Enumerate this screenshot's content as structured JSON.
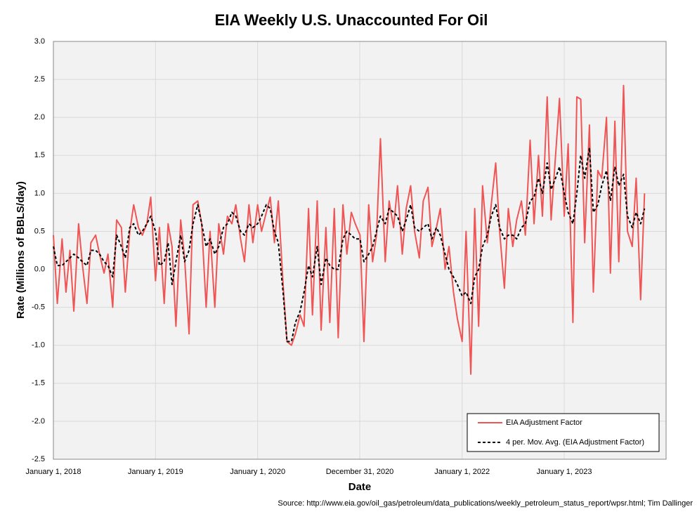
{
  "chart_data": {
    "type": "line",
    "title": "EIA Weekly U.S. Unaccounted For Oil",
    "x_label": "Date",
    "y_label": "Rate (Millions of BBLS/day)",
    "source": "Source: http://www.eia.gov/oil_gas/petroleum/data_publications/weekly_petroleum_status_report/wpsr.html; Tim Dallinger",
    "grid": true,
    "legend": "lower right",
    "xlim": [
      "2018-01-01",
      "2023-12-31"
    ],
    "xticks": [
      {
        "value": "2018-01-01",
        "label": "January 1, 2018"
      },
      {
        "value": "2019-01-01",
        "label": "January 1, 2019"
      },
      {
        "value": "2020-01-01",
        "label": "January 1, 2020"
      },
      {
        "value": "2020-12-31",
        "label": "December 31, 2020"
      },
      {
        "value": "2022-01-01",
        "label": "January 1, 2022"
      },
      {
        "value": "2023-01-01",
        "label": "January 1, 2023"
      }
    ],
    "ylim": [
      -2.5,
      3
    ],
    "yticks": [
      {
        "value": 3,
        "label": "3.0"
      },
      2.5,
      {
        "value": 2,
        "label": "2.0"
      },
      1.5,
      {
        "value": 1,
        "label": "1.0"
      },
      0.5,
      {
        "value": 0,
        "label": "0.0"
      },
      -0.5,
      {
        "value": -1,
        "label": "-1.0"
      },
      -1.5,
      {
        "value": -2,
        "label": "-2.0"
      },
      -2.5
    ],
    "x": [
      "2018-01-01",
      "2018-01-15",
      "2018-02-01",
      "2018-02-15",
      "2018-03-01",
      "2018-03-15",
      "2018-04-01",
      "2018-04-15",
      "2018-05-01",
      "2018-05-15",
      "2018-06-01",
      "2018-06-15",
      "2018-07-01",
      "2018-07-15",
      "2018-08-01",
      "2018-08-15",
      "2018-09-01",
      "2018-09-15",
      "2018-10-01",
      "2018-10-15",
      "2018-11-01",
      "2018-11-15",
      "2018-12-01",
      "2018-12-15",
      "2019-01-01",
      "2019-01-15",
      "2019-02-01",
      "2019-02-15",
      "2019-03-01",
      "2019-03-15",
      "2019-04-01",
      "2019-04-15",
      "2019-05-01",
      "2019-05-15",
      "2019-06-01",
      "2019-06-15",
      "2019-07-01",
      "2019-07-15",
      "2019-08-01",
      "2019-08-15",
      "2019-09-01",
      "2019-09-15",
      "2019-10-01",
      "2019-10-15",
      "2019-11-01",
      "2019-11-15",
      "2019-12-01",
      "2019-12-15",
      "2020-01-01",
      "2020-01-15",
      "2020-02-01",
      "2020-02-15",
      "2020-03-01",
      "2020-03-15",
      "2020-04-01",
      "2020-04-15",
      "2020-05-01",
      "2020-05-15",
      "2020-06-01",
      "2020-06-15",
      "2020-07-01",
      "2020-07-15",
      "2020-08-01",
      "2020-08-15",
      "2020-09-01",
      "2020-09-15",
      "2020-10-01",
      "2020-10-15",
      "2020-11-01",
      "2020-11-15",
      "2020-12-01",
      "2020-12-15",
      "2021-01-01",
      "2021-01-15",
      "2021-02-01",
      "2021-02-15",
      "2021-03-01",
      "2021-03-15",
      "2021-04-01",
      "2021-04-15",
      "2021-05-01",
      "2021-05-15",
      "2021-06-01",
      "2021-06-15",
      "2021-07-01",
      "2021-07-15",
      "2021-08-01",
      "2021-08-15",
      "2021-09-01",
      "2021-09-15",
      "2021-10-01",
      "2021-10-15",
      "2021-11-01",
      "2021-11-15",
      "2021-12-01",
      "2021-12-15",
      "2022-01-01",
      "2022-01-15",
      "2022-02-01",
      "2022-02-15",
      "2022-03-01",
      "2022-03-15",
      "2022-04-01",
      "2022-04-15",
      "2022-05-01",
      "2022-05-15",
      "2022-06-01",
      "2022-06-15",
      "2022-07-01",
      "2022-07-15",
      "2022-08-01",
      "2022-08-15",
      "2022-09-01",
      "2022-09-15",
      "2022-10-01",
      "2022-10-15",
      "2022-11-01",
      "2022-11-15",
      "2022-12-01",
      "2022-12-15",
      "2023-01-01",
      "2023-01-15",
      "2023-02-01",
      "2023-02-15",
      "2023-03-01",
      "2023-03-15",
      "2023-04-01",
      "2023-04-15",
      "2023-05-01",
      "2023-05-15",
      "2023-06-01",
      "2023-06-15",
      "2023-07-01",
      "2023-07-15",
      "2023-08-01",
      "2023-08-15",
      "2023-09-01",
      "2023-09-15",
      "2023-10-01",
      "2023-10-15"
    ],
    "series": [
      {
        "name": "EIA Adjustment Factor",
        "color": "#f05555",
        "dashed": false,
        "values": [
          0.45,
          -0.45,
          0.4,
          -0.3,
          0.25,
          -0.55,
          0.6,
          0.05,
          -0.45,
          0.35,
          0.45,
          0.2,
          -0.05,
          0.2,
          -0.5,
          0.65,
          0.55,
          -0.3,
          0.5,
          0.85,
          0.55,
          0.45,
          0.6,
          0.95,
          -0.15,
          0.55,
          -0.45,
          0.6,
          0.3,
          -0.75,
          0.65,
          0.15,
          -0.85,
          0.85,
          0.9,
          0.6,
          -0.5,
          0.5,
          -0.5,
          0.6,
          0.2,
          0.7,
          0.6,
          0.85,
          0.4,
          0.1,
          0.85,
          0.35,
          0.85,
          0.5,
          0.75,
          0.95,
          0.35,
          0.9,
          -0.2,
          -0.95,
          -1.0,
          -0.85,
          -0.6,
          -0.75,
          0.8,
          -0.6,
          0.9,
          -0.8,
          0.55,
          -0.7,
          0.8,
          -0.9,
          0.85,
          0.2,
          0.75,
          0.6,
          0.45,
          -0.95,
          0.85,
          0.1,
          0.45,
          1.72,
          0.1,
          0.9,
          0.55,
          1.1,
          0.2,
          0.8,
          1.1,
          0.5,
          0.15,
          0.9,
          1.08,
          0.3,
          0.55,
          0.8,
          0.0,
          0.3,
          -0.3,
          -0.65,
          -0.95,
          0.5,
          -1.38,
          0.8,
          -0.75,
          1.1,
          0.35,
          0.85,
          1.4,
          0.5,
          -0.25,
          0.8,
          0.3,
          0.65,
          0.9,
          0.45,
          1.7,
          0.6,
          1.5,
          0.7,
          2.27,
          0.65,
          1.5,
          2.25,
          0.7,
          1.65,
          -0.7,
          2.27,
          2.24,
          0.35,
          1.9,
          -0.3,
          1.3,
          1.2,
          2.0,
          -0.05,
          1.95,
          0.1,
          2.42,
          0.5,
          0.3,
          1.2,
          -0.4,
          1.0
        ]
      },
      {
        "name": "4 per. Mov. Avg. (EIA Adjustment Factor)",
        "color": "#000000",
        "dashed": true,
        "values": [
          0.3,
          0.05,
          0.05,
          0.1,
          0.15,
          0.2,
          0.15,
          0.1,
          0.05,
          0.25,
          0.25,
          0.2,
          0.1,
          0.05,
          -0.1,
          0.45,
          0.3,
          0.15,
          0.55,
          0.6,
          0.45,
          0.5,
          0.6,
          0.7,
          0.5,
          0.05,
          0.1,
          0.35,
          -0.2,
          0.1,
          0.45,
          0.1,
          0.25,
          0.6,
          0.85,
          0.6,
          0.3,
          0.4,
          0.2,
          0.3,
          0.55,
          0.6,
          0.75,
          0.7,
          0.5,
          0.45,
          0.6,
          0.55,
          0.6,
          0.7,
          0.85,
          0.8,
          0.5,
          0.35,
          -0.3,
          -0.95,
          -0.95,
          -0.7,
          -0.55,
          -0.3,
          0.05,
          -0.1,
          0.3,
          -0.2,
          0.15,
          0.05,
          0.0,
          0.0,
          0.4,
          0.5,
          0.45,
          0.4,
          0.4,
          0.1,
          0.2,
          0.3,
          0.5,
          0.7,
          0.6,
          0.8,
          0.75,
          0.7,
          0.5,
          0.65,
          0.85,
          0.55,
          0.5,
          0.55,
          0.6,
          0.4,
          0.55,
          0.45,
          0.2,
          0.0,
          -0.1,
          -0.2,
          -0.35,
          -0.3,
          -0.45,
          -0.1,
          0.0,
          0.3,
          0.45,
          0.7,
          0.85,
          0.55,
          0.4,
          0.45,
          0.45,
          0.4,
          0.55,
          0.6,
          0.9,
          0.95,
          1.2,
          1.0,
          1.4,
          1.05,
          1.2,
          1.35,
          1.0,
          0.75,
          0.6,
          1.0,
          1.5,
          1.2,
          1.6,
          0.75,
          0.85,
          1.1,
          1.3,
          0.9,
          1.35,
          1.1,
          1.25,
          0.7,
          0.55,
          0.75,
          0.6,
          0.8
        ]
      }
    ]
  }
}
